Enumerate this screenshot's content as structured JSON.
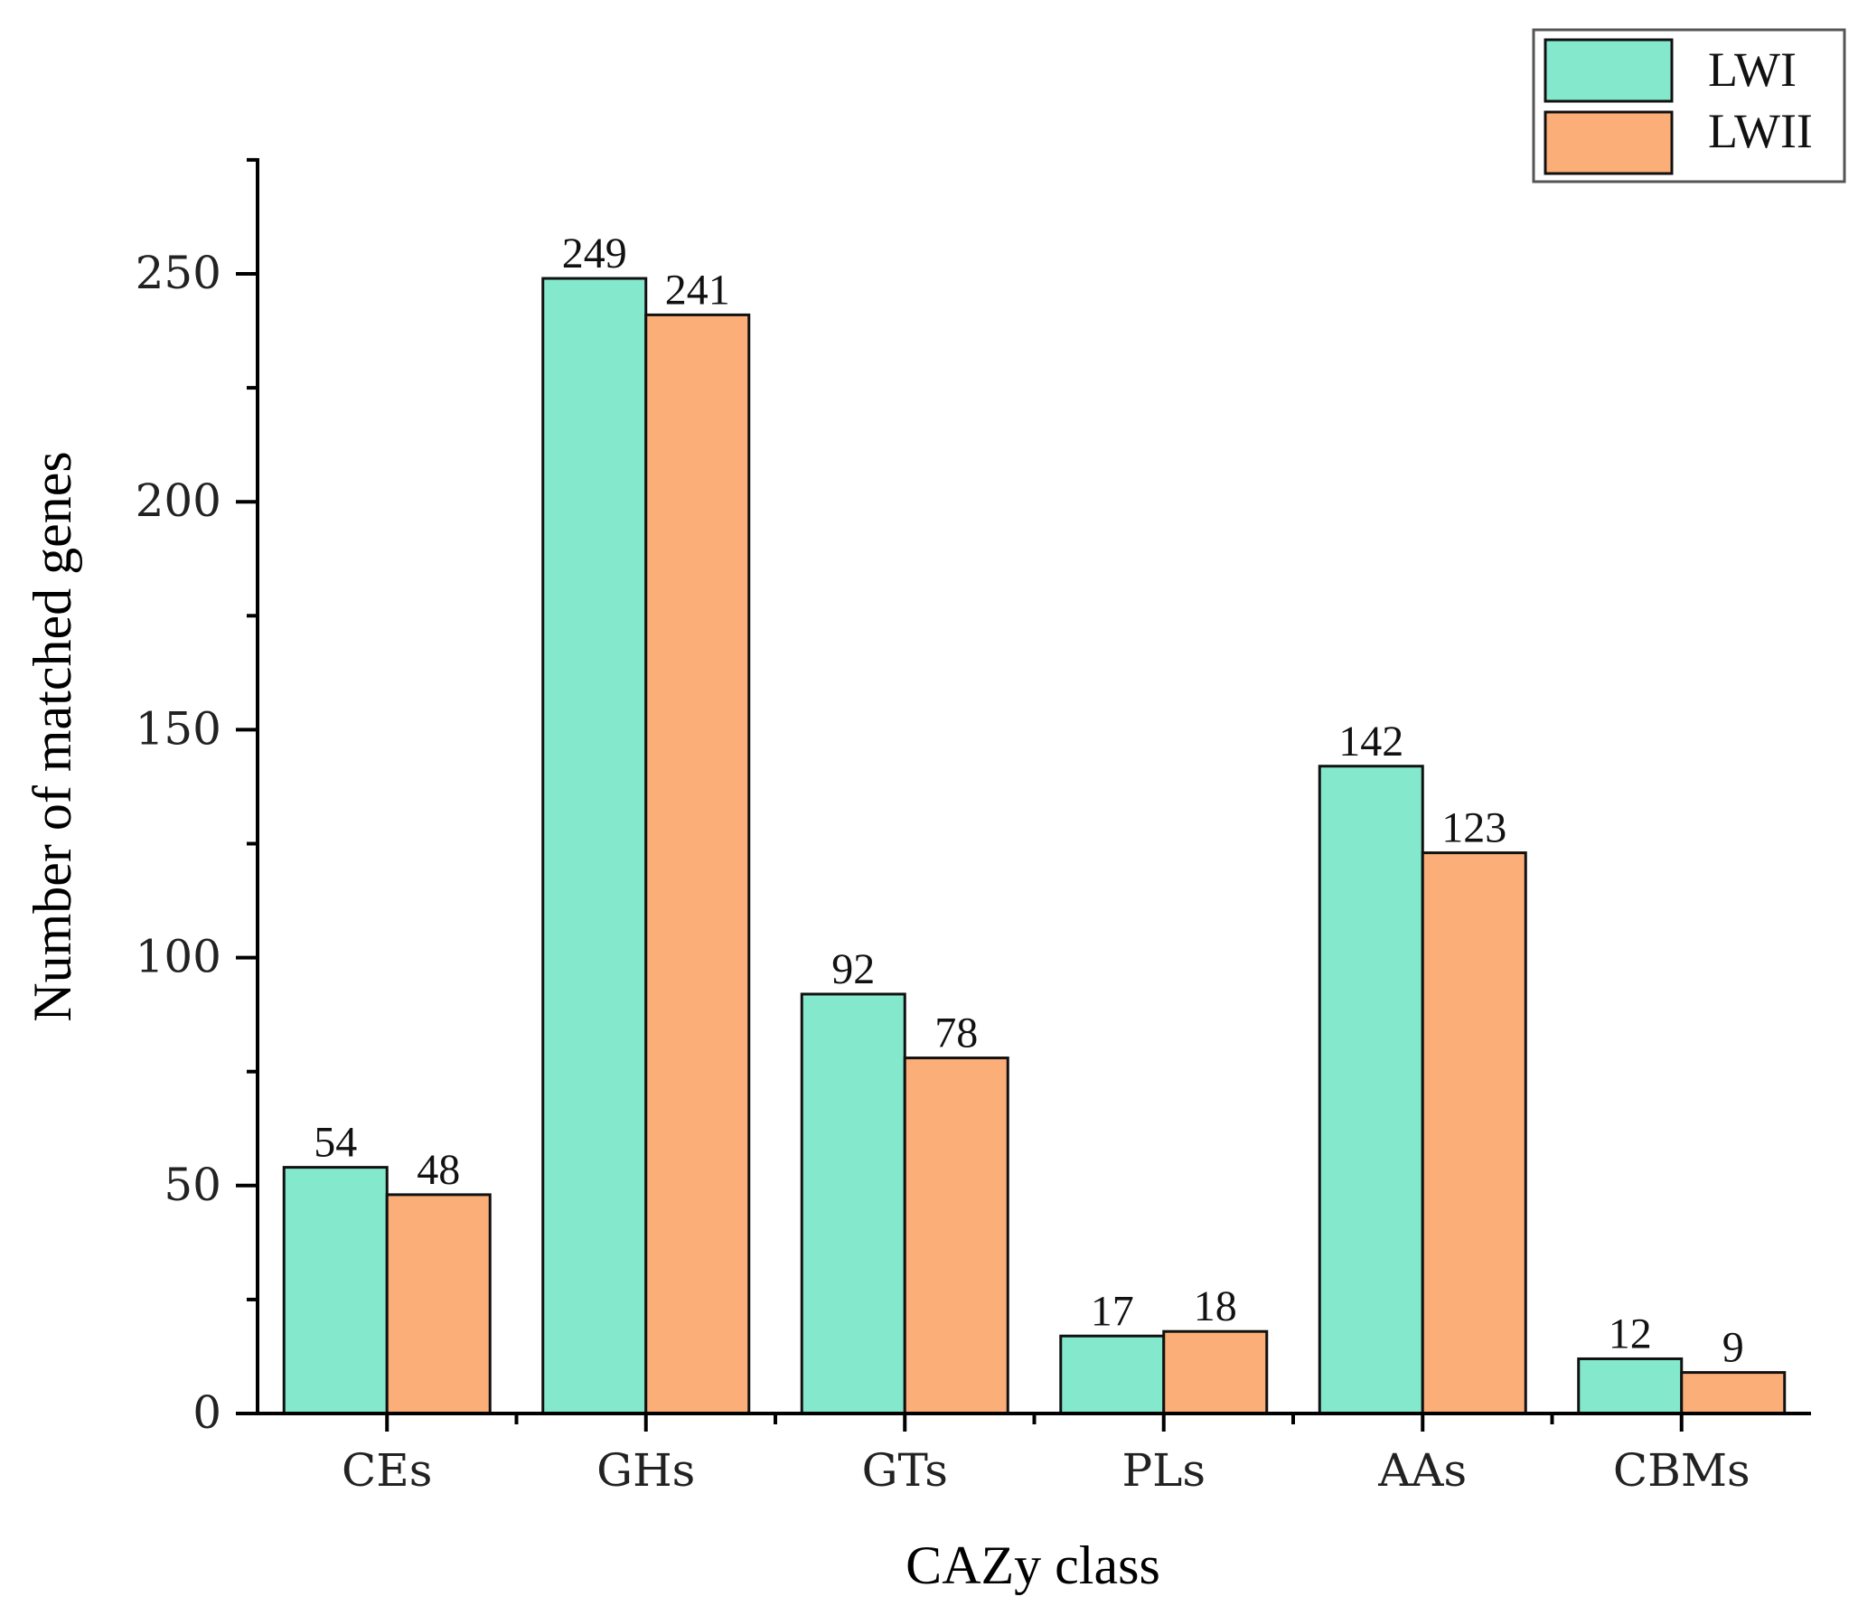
{
  "chart_data": {
    "type": "bar",
    "title": "",
    "xlabel": "CAZy class",
    "ylabel": "Number of matched genes",
    "categories": [
      "CEs",
      "GHs",
      "GTs",
      "PLs",
      "AAs",
      "CBMs"
    ],
    "series": [
      {
        "name": "LWI",
        "color": "#84E8CC",
        "values": [
          54,
          249,
          92,
          17,
          142,
          12
        ],
        "labels": [
          "54",
          "249",
          "92",
          "17",
          "142",
          "12"
        ]
      },
      {
        "name": "LWII",
        "color": "#FCAE78",
        "values": [
          48,
          241,
          78,
          18,
          123,
          9
        ],
        "labels": [
          "48",
          "241",
          "78",
          "18",
          "123",
          "9"
        ]
      }
    ],
    "ylim": [
      0,
      275
    ],
    "yticks": [
      0,
      50,
      100,
      150,
      200,
      250
    ],
    "ytick_labels": [
      "0",
      "50",
      "100",
      "150",
      "200",
      "250"
    ],
    "legend_position": "top-right",
    "grid": false
  }
}
